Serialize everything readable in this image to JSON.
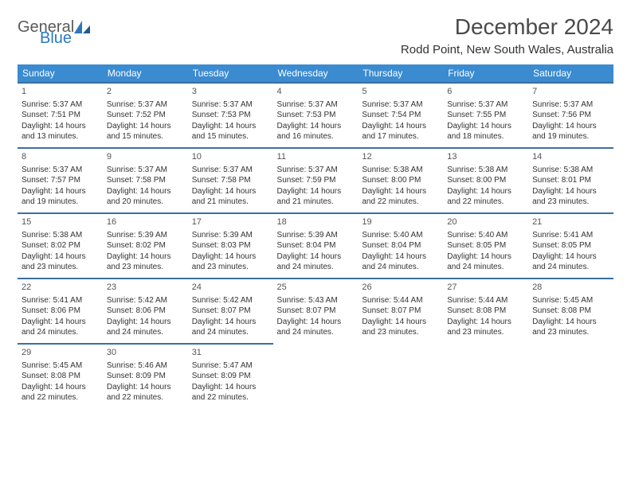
{
  "logo": {
    "text1": "General",
    "text2": "Blue"
  },
  "title": "December 2024",
  "location": "Rodd Point, New South Wales, Australia",
  "colors": {
    "header_bg": "#3b8bd0",
    "header_text": "#ffffff",
    "cell_border": "#3b6fa0",
    "body_text": "#333333",
    "logo_gray": "#5a5a5a",
    "logo_blue": "#2b78c2"
  },
  "weekdays": [
    "Sunday",
    "Monday",
    "Tuesday",
    "Wednesday",
    "Thursday",
    "Friday",
    "Saturday"
  ],
  "weeks": [
    [
      {
        "n": "1",
        "sr": "Sunrise: 5:37 AM",
        "ss": "Sunset: 7:51 PM",
        "dl": "Daylight: 14 hours and 13 minutes."
      },
      {
        "n": "2",
        "sr": "Sunrise: 5:37 AM",
        "ss": "Sunset: 7:52 PM",
        "dl": "Daylight: 14 hours and 15 minutes."
      },
      {
        "n": "3",
        "sr": "Sunrise: 5:37 AM",
        "ss": "Sunset: 7:53 PM",
        "dl": "Daylight: 14 hours and 15 minutes."
      },
      {
        "n": "4",
        "sr": "Sunrise: 5:37 AM",
        "ss": "Sunset: 7:53 PM",
        "dl": "Daylight: 14 hours and 16 minutes."
      },
      {
        "n": "5",
        "sr": "Sunrise: 5:37 AM",
        "ss": "Sunset: 7:54 PM",
        "dl": "Daylight: 14 hours and 17 minutes."
      },
      {
        "n": "6",
        "sr": "Sunrise: 5:37 AM",
        "ss": "Sunset: 7:55 PM",
        "dl": "Daylight: 14 hours and 18 minutes."
      },
      {
        "n": "7",
        "sr": "Sunrise: 5:37 AM",
        "ss": "Sunset: 7:56 PM",
        "dl": "Daylight: 14 hours and 19 minutes."
      }
    ],
    [
      {
        "n": "8",
        "sr": "Sunrise: 5:37 AM",
        "ss": "Sunset: 7:57 PM",
        "dl": "Daylight: 14 hours and 19 minutes."
      },
      {
        "n": "9",
        "sr": "Sunrise: 5:37 AM",
        "ss": "Sunset: 7:58 PM",
        "dl": "Daylight: 14 hours and 20 minutes."
      },
      {
        "n": "10",
        "sr": "Sunrise: 5:37 AM",
        "ss": "Sunset: 7:58 PM",
        "dl": "Daylight: 14 hours and 21 minutes."
      },
      {
        "n": "11",
        "sr": "Sunrise: 5:37 AM",
        "ss": "Sunset: 7:59 PM",
        "dl": "Daylight: 14 hours and 21 minutes."
      },
      {
        "n": "12",
        "sr": "Sunrise: 5:38 AM",
        "ss": "Sunset: 8:00 PM",
        "dl": "Daylight: 14 hours and 22 minutes."
      },
      {
        "n": "13",
        "sr": "Sunrise: 5:38 AM",
        "ss": "Sunset: 8:00 PM",
        "dl": "Daylight: 14 hours and 22 minutes."
      },
      {
        "n": "14",
        "sr": "Sunrise: 5:38 AM",
        "ss": "Sunset: 8:01 PM",
        "dl": "Daylight: 14 hours and 23 minutes."
      }
    ],
    [
      {
        "n": "15",
        "sr": "Sunrise: 5:38 AM",
        "ss": "Sunset: 8:02 PM",
        "dl": "Daylight: 14 hours and 23 minutes."
      },
      {
        "n": "16",
        "sr": "Sunrise: 5:39 AM",
        "ss": "Sunset: 8:02 PM",
        "dl": "Daylight: 14 hours and 23 minutes."
      },
      {
        "n": "17",
        "sr": "Sunrise: 5:39 AM",
        "ss": "Sunset: 8:03 PM",
        "dl": "Daylight: 14 hours and 23 minutes."
      },
      {
        "n": "18",
        "sr": "Sunrise: 5:39 AM",
        "ss": "Sunset: 8:04 PM",
        "dl": "Daylight: 14 hours and 24 minutes."
      },
      {
        "n": "19",
        "sr": "Sunrise: 5:40 AM",
        "ss": "Sunset: 8:04 PM",
        "dl": "Daylight: 14 hours and 24 minutes."
      },
      {
        "n": "20",
        "sr": "Sunrise: 5:40 AM",
        "ss": "Sunset: 8:05 PM",
        "dl": "Daylight: 14 hours and 24 minutes."
      },
      {
        "n": "21",
        "sr": "Sunrise: 5:41 AM",
        "ss": "Sunset: 8:05 PM",
        "dl": "Daylight: 14 hours and 24 minutes."
      }
    ],
    [
      {
        "n": "22",
        "sr": "Sunrise: 5:41 AM",
        "ss": "Sunset: 8:06 PM",
        "dl": "Daylight: 14 hours and 24 minutes."
      },
      {
        "n": "23",
        "sr": "Sunrise: 5:42 AM",
        "ss": "Sunset: 8:06 PM",
        "dl": "Daylight: 14 hours and 24 minutes."
      },
      {
        "n": "24",
        "sr": "Sunrise: 5:42 AM",
        "ss": "Sunset: 8:07 PM",
        "dl": "Daylight: 14 hours and 24 minutes."
      },
      {
        "n": "25",
        "sr": "Sunrise: 5:43 AM",
        "ss": "Sunset: 8:07 PM",
        "dl": "Daylight: 14 hours and 24 minutes."
      },
      {
        "n": "26",
        "sr": "Sunrise: 5:44 AM",
        "ss": "Sunset: 8:07 PM",
        "dl": "Daylight: 14 hours and 23 minutes."
      },
      {
        "n": "27",
        "sr": "Sunrise: 5:44 AM",
        "ss": "Sunset: 8:08 PM",
        "dl": "Daylight: 14 hours and 23 minutes."
      },
      {
        "n": "28",
        "sr": "Sunrise: 5:45 AM",
        "ss": "Sunset: 8:08 PM",
        "dl": "Daylight: 14 hours and 23 minutes."
      }
    ],
    [
      {
        "n": "29",
        "sr": "Sunrise: 5:45 AM",
        "ss": "Sunset: 8:08 PM",
        "dl": "Daylight: 14 hours and 22 minutes."
      },
      {
        "n": "30",
        "sr": "Sunrise: 5:46 AM",
        "ss": "Sunset: 8:09 PM",
        "dl": "Daylight: 14 hours and 22 minutes."
      },
      {
        "n": "31",
        "sr": "Sunrise: 5:47 AM",
        "ss": "Sunset: 8:09 PM",
        "dl": "Daylight: 14 hours and 22 minutes."
      },
      null,
      null,
      null,
      null
    ]
  ]
}
